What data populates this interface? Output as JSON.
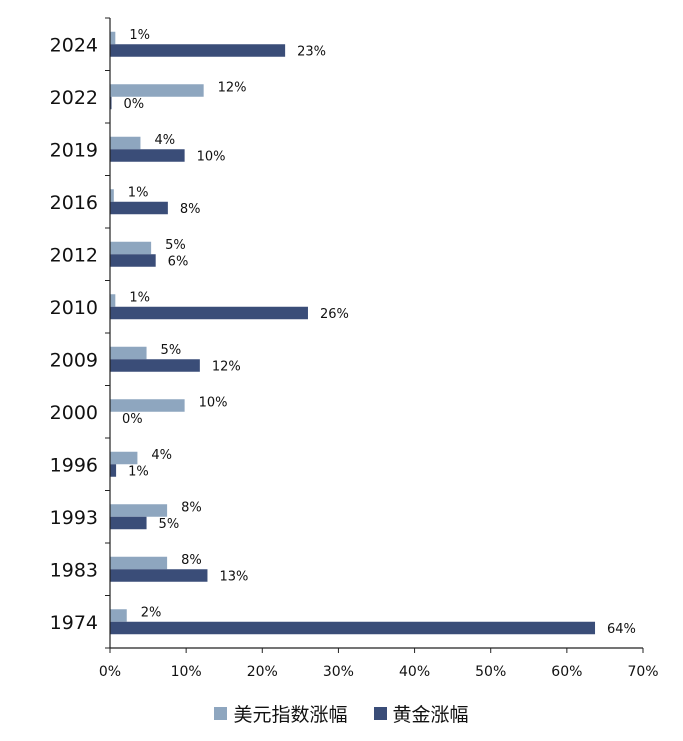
{
  "chart_data": {
    "type": "bar",
    "orientation": "horizontal",
    "categories": [
      "2024",
      "2022",
      "2019",
      "2016",
      "2012",
      "2010",
      "2009",
      "2000",
      "1996",
      "1993",
      "1983",
      "1974"
    ],
    "series": [
      {
        "name": "美元指数涨幅",
        "color": "#8ea6bf",
        "values": [
          0.7,
          12.3,
          4.0,
          0.5,
          5.4,
          0.7,
          4.8,
          9.8,
          3.6,
          7.5,
          7.5,
          2.2
        ],
        "labels": [
          "1%",
          "12%",
          "4%",
          "1%",
          "5%",
          "1%",
          "5%",
          "10%",
          "4%",
          "8%",
          "8%",
          "2%"
        ]
      },
      {
        "name": "黄金涨幅",
        "color": "#3a4d78",
        "values": [
          23.0,
          0.2,
          9.8,
          7.6,
          6.0,
          26.0,
          11.8,
          0.0,
          0.8,
          4.8,
          12.8,
          63.7
        ],
        "labels": [
          "23%",
          "0%",
          "10%",
          "8%",
          "6%",
          "26%",
          "12%",
          "0%",
          "1%",
          "5%",
          "13%",
          "64%"
        ]
      }
    ],
    "xlim": [
      0,
      70
    ],
    "xticks": [
      "0%",
      "10%",
      "20%",
      "30%",
      "40%",
      "50%",
      "60%",
      "70%"
    ],
    "xlabel": "",
    "ylabel": "",
    "title": "",
    "grid": false,
    "legend_position": "bottom"
  }
}
